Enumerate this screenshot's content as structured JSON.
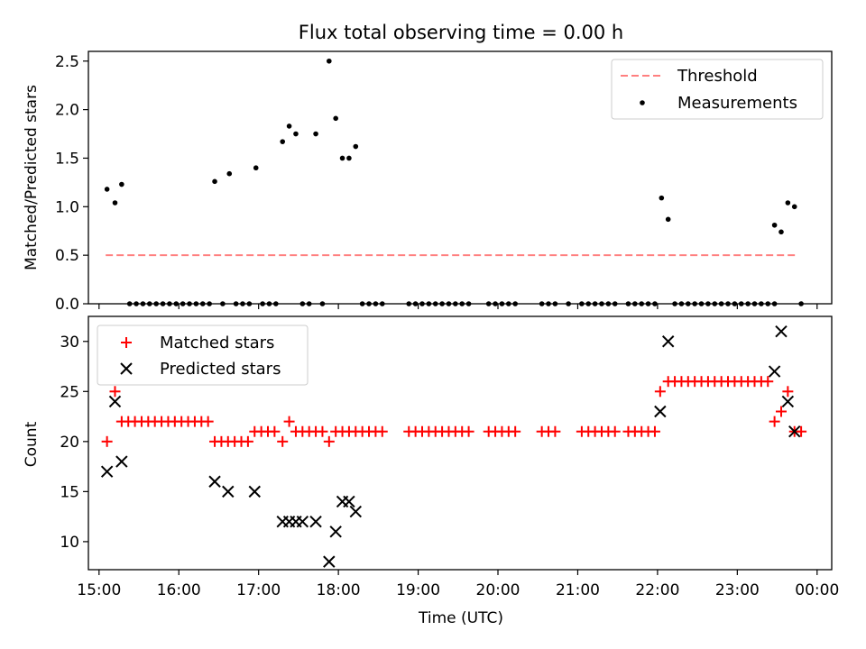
{
  "chart_data": [
    {
      "type": "scatter",
      "title": "Flux total observing time = 0.00 h",
      "xlabel": "",
      "ylabel": "Matched/Predicted stars",
      "xlim": [
        "14:52",
        "00:11"
      ],
      "ylim": [
        0,
        2.6
      ],
      "x_ticks": [
        "15:00",
        "16:00",
        "17:00",
        "18:00",
        "19:00",
        "20:00",
        "21:00",
        "22:00",
        "23:00",
        "00:00"
      ],
      "y_ticks": [
        "0.0",
        "0.5",
        "1.0",
        "1.5",
        "2.0",
        "2.5"
      ],
      "legend": {
        "placement": "top-right",
        "entries": [
          "Threshold",
          "Measurements"
        ]
      },
      "threshold": {
        "name": "Threshold",
        "value": 0.5,
        "x_start": "15:05",
        "x_end": "23:45",
        "color": "#ff7f7f",
        "style": "dashed"
      },
      "series": [
        {
          "name": "Measurements",
          "color": "#000000",
          "marker": "dot",
          "points": [
            [
              "15:06",
              1.18
            ],
            [
              "15:12",
              1.04
            ],
            [
              "15:17",
              1.23
            ],
            [
              "15:23",
              0
            ],
            [
              "15:28",
              0
            ],
            [
              "15:33",
              0
            ],
            [
              "15:38",
              0
            ],
            [
              "15:43",
              0
            ],
            [
              "15:48",
              0
            ],
            [
              "15:53",
              0
            ],
            [
              "15:58",
              0
            ],
            [
              "16:03",
              0
            ],
            [
              "16:08",
              0
            ],
            [
              "16:13",
              0
            ],
            [
              "16:18",
              0
            ],
            [
              "16:23",
              0
            ],
            [
              "16:27",
              1.26
            ],
            [
              "16:33",
              0
            ],
            [
              "16:38",
              1.34
            ],
            [
              "16:43",
              0
            ],
            [
              "16:48",
              0
            ],
            [
              "16:53",
              0
            ],
            [
              "16:58",
              1.4
            ],
            [
              "17:03",
              0
            ],
            [
              "17:08",
              0
            ],
            [
              "17:13",
              0
            ],
            [
              "17:18",
              1.67
            ],
            [
              "17:23",
              1.83
            ],
            [
              "17:28",
              1.75
            ],
            [
              "17:33",
              0
            ],
            [
              "17:38",
              0
            ],
            [
              "17:43",
              1.75
            ],
            [
              "17:48",
              0
            ],
            [
              "17:53",
              2.5
            ],
            [
              "17:58",
              1.91
            ],
            [
              "18:03",
              1.5
            ],
            [
              "18:08",
              1.5
            ],
            [
              "18:13",
              1.62
            ],
            [
              "18:18",
              0
            ],
            [
              "18:23",
              0
            ],
            [
              "18:28",
              0
            ],
            [
              "18:33",
              0
            ],
            [
              "18:53",
              0
            ],
            [
              "18:58",
              0
            ],
            [
              "19:03",
              0
            ],
            [
              "19:08",
              0
            ],
            [
              "19:13",
              0
            ],
            [
              "19:18",
              0
            ],
            [
              "19:23",
              0
            ],
            [
              "19:28",
              0
            ],
            [
              "19:33",
              0
            ],
            [
              "19:38",
              0
            ],
            [
              "19:53",
              0
            ],
            [
              "19:58",
              0
            ],
            [
              "20:03",
              0
            ],
            [
              "20:08",
              0
            ],
            [
              "20:13",
              0
            ],
            [
              "20:33",
              0
            ],
            [
              "20:38",
              0
            ],
            [
              "20:43",
              0
            ],
            [
              "20:53",
              0
            ],
            [
              "21:03",
              0
            ],
            [
              "21:08",
              0
            ],
            [
              "21:13",
              0
            ],
            [
              "21:18",
              0
            ],
            [
              "21:23",
              0
            ],
            [
              "21:28",
              0
            ],
            [
              "21:38",
              0
            ],
            [
              "21:43",
              0
            ],
            [
              "21:48",
              0
            ],
            [
              "21:53",
              0
            ],
            [
              "21:58",
              0
            ],
            [
              "22:03",
              1.09
            ],
            [
              "22:08",
              0.87
            ],
            [
              "22:13",
              0
            ],
            [
              "22:18",
              0
            ],
            [
              "22:23",
              0
            ],
            [
              "22:28",
              0
            ],
            [
              "22:33",
              0
            ],
            [
              "22:38",
              0
            ],
            [
              "22:43",
              0
            ],
            [
              "22:48",
              0
            ],
            [
              "22:53",
              0
            ],
            [
              "22:58",
              0
            ],
            [
              "23:03",
              0
            ],
            [
              "23:08",
              0
            ],
            [
              "23:13",
              0
            ],
            [
              "23:18",
              0
            ],
            [
              "23:23",
              0
            ],
            [
              "23:28",
              0
            ],
            [
              "23:28",
              0.81
            ],
            [
              "23:33",
              0.74
            ],
            [
              "23:38",
              1.04
            ],
            [
              "23:43",
              1.0
            ],
            [
              "23:48",
              0
            ]
          ]
        }
      ]
    },
    {
      "type": "scatter",
      "title": "",
      "xlabel": "Time (UTC)",
      "ylabel": "Count",
      "xlim": [
        "14:52",
        "00:11"
      ],
      "ylim": [
        7.2,
        32.5
      ],
      "x_ticks": [
        "15:00",
        "16:00",
        "17:00",
        "18:00",
        "19:00",
        "20:00",
        "21:00",
        "22:00",
        "23:00",
        "00:00"
      ],
      "y_ticks": [
        "10",
        "15",
        "20",
        "25",
        "30"
      ],
      "legend": {
        "placement": "top-left",
        "entries": [
          "Matched stars",
          "Predicted stars"
        ]
      },
      "series": [
        {
          "name": "Matched stars",
          "color": "#ff0000",
          "marker": "plus",
          "points": [
            [
              "15:06",
              20
            ],
            [
              "15:12",
              25
            ],
            [
              "15:17",
              22
            ],
            [
              "15:22",
              22
            ],
            [
              "15:27",
              22
            ],
            [
              "15:32",
              22
            ],
            [
              "15:37",
              22
            ],
            [
              "15:42",
              22
            ],
            [
              "15:47",
              22
            ],
            [
              "15:52",
              22
            ],
            [
              "15:57",
              22
            ],
            [
              "16:02",
              22
            ],
            [
              "16:07",
              22
            ],
            [
              "16:12",
              22
            ],
            [
              "16:17",
              22
            ],
            [
              "16:22",
              22
            ],
            [
              "16:27",
              20
            ],
            [
              "16:32",
              20
            ],
            [
              "16:37",
              20
            ],
            [
              "16:42",
              20
            ],
            [
              "16:47",
              20
            ],
            [
              "16:52",
              20
            ],
            [
              "16:57",
              21
            ],
            [
              "17:02",
              21
            ],
            [
              "17:07",
              21
            ],
            [
              "17:12",
              21
            ],
            [
              "17:18",
              20
            ],
            [
              "17:23",
              22
            ],
            [
              "17:28",
              21
            ],
            [
              "17:33",
              21
            ],
            [
              "17:38",
              21
            ],
            [
              "17:43",
              21
            ],
            [
              "17:48",
              21
            ],
            [
              "17:53",
              20
            ],
            [
              "17:58",
              21
            ],
            [
              "18:03",
              21
            ],
            [
              "18:08",
              21
            ],
            [
              "18:13",
              21
            ],
            [
              "18:18",
              21
            ],
            [
              "18:23",
              21
            ],
            [
              "18:28",
              21
            ],
            [
              "18:33",
              21
            ],
            [
              "18:53",
              21
            ],
            [
              "18:58",
              21
            ],
            [
              "19:03",
              21
            ],
            [
              "19:08",
              21
            ],
            [
              "19:13",
              21
            ],
            [
              "19:18",
              21
            ],
            [
              "19:23",
              21
            ],
            [
              "19:28",
              21
            ],
            [
              "19:33",
              21
            ],
            [
              "19:38",
              21
            ],
            [
              "19:53",
              21
            ],
            [
              "19:58",
              21
            ],
            [
              "20:03",
              21
            ],
            [
              "20:08",
              21
            ],
            [
              "20:13",
              21
            ],
            [
              "20:33",
              21
            ],
            [
              "20:38",
              21
            ],
            [
              "20:43",
              21
            ],
            [
              "21:03",
              21
            ],
            [
              "21:08",
              21
            ],
            [
              "21:13",
              21
            ],
            [
              "21:18",
              21
            ],
            [
              "21:23",
              21
            ],
            [
              "21:28",
              21
            ],
            [
              "21:38",
              21
            ],
            [
              "21:43",
              21
            ],
            [
              "21:48",
              21
            ],
            [
              "21:53",
              21
            ],
            [
              "21:58",
              21
            ],
            [
              "22:02",
              25
            ],
            [
              "22:08",
              26
            ],
            [
              "22:13",
              26
            ],
            [
              "22:18",
              26
            ],
            [
              "22:23",
              26
            ],
            [
              "22:28",
              26
            ],
            [
              "22:33",
              26
            ],
            [
              "22:38",
              26
            ],
            [
              "22:43",
              26
            ],
            [
              "22:48",
              26
            ],
            [
              "22:53",
              26
            ],
            [
              "22:58",
              26
            ],
            [
              "23:03",
              26
            ],
            [
              "23:08",
              26
            ],
            [
              "23:13",
              26
            ],
            [
              "23:18",
              26
            ],
            [
              "23:23",
              26
            ],
            [
              "23:28",
              22
            ],
            [
              "23:33",
              23
            ],
            [
              "23:38",
              25
            ],
            [
              "23:43",
              21
            ],
            [
              "23:48",
              21
            ]
          ]
        },
        {
          "name": "Predicted stars",
          "color": "#000000",
          "marker": "x",
          "points": [
            [
              "15:06",
              17
            ],
            [
              "15:12",
              24
            ],
            [
              "15:17",
              18
            ],
            [
              "16:27",
              16
            ],
            [
              "16:37",
              15
            ],
            [
              "16:57",
              15
            ],
            [
              "17:18",
              12
            ],
            [
              "17:23",
              12
            ],
            [
              "17:28",
              12
            ],
            [
              "17:33",
              12
            ],
            [
              "17:43",
              12
            ],
            [
              "17:53",
              8
            ],
            [
              "17:58",
              11
            ],
            [
              "18:03",
              14
            ],
            [
              "18:08",
              14
            ],
            [
              "18:13",
              13
            ],
            [
              "22:02",
              23
            ],
            [
              "22:08",
              30
            ],
            [
              "23:28",
              27
            ],
            [
              "23:33",
              31
            ],
            [
              "23:38",
              24
            ],
            [
              "23:43",
              21
            ]
          ]
        }
      ]
    }
  ]
}
